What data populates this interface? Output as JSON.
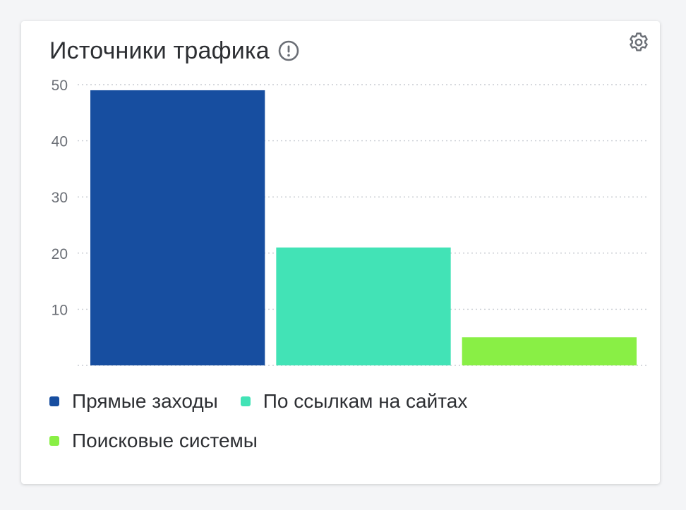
{
  "widget": {
    "title": "Источники трафика",
    "info_icon": "info-circle-icon",
    "settings_icon": "gear-icon"
  },
  "colors": {
    "direct": "#174ea0",
    "links": "#42e3b6",
    "search": "#89ef45",
    "grid": "#c8ccd2",
    "tick_text": "#6b6f76"
  },
  "chart_data": {
    "type": "bar",
    "title": "Источники трафика",
    "categories": [
      "Прямые заходы",
      "По ссылкам на сайтах",
      "Поисковые системы"
    ],
    "values": [
      49,
      21,
      5
    ],
    "ylim": [
      0,
      50
    ],
    "yticks": [
      10,
      20,
      30,
      40,
      50
    ],
    "grid": true,
    "legend_position": "bottom",
    "xlabel": "",
    "ylabel": ""
  },
  "legend": [
    {
      "label": "Прямые заходы",
      "color": "#174ea0"
    },
    {
      "label": "По ссылкам на сайтах",
      "color": "#42e3b6"
    },
    {
      "label": "Поисковые системы",
      "color": "#89ef45"
    }
  ]
}
